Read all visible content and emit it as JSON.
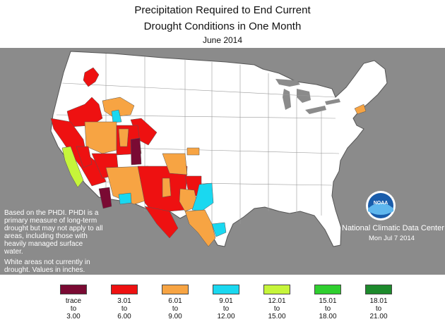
{
  "title": {
    "line1": "Precipitation Required to End Current",
    "line2": "Drought Conditions in One Month",
    "line3": "June 2014"
  },
  "notes": {
    "basis": "Based on the PHDI. PHDI is a primary measure of long-term drought but may not apply to all areas, including those with heavily managed surface water.",
    "white": "White areas not currently in drought. Values in inches."
  },
  "credit": {
    "org": "National Climatic Data Center",
    "date": "Mon Jul 7 2014",
    "logo_text": "NOAA"
  },
  "legend": [
    {
      "from": "trace",
      "to_word": "to",
      "to": "3.00",
      "color": "#7a0a33"
    },
    {
      "from": "3.01",
      "to_word": "to",
      "to": "6.00",
      "color": "#ee1111"
    },
    {
      "from": "6.01",
      "to_word": "to",
      "to": "9.00",
      "color": "#f7a443"
    },
    {
      "from": "9.01",
      "to_word": "to",
      "to": "12.00",
      "color": "#1ad8f0"
    },
    {
      "from": "12.01",
      "to_word": "to",
      "to": "15.00",
      "color": "#c6f53a"
    },
    {
      "from": "15.01",
      "to_word": "to",
      "to": "18.00",
      "color": "#2fcf2f"
    },
    {
      "from": "18.01",
      "to_word": "to",
      "to": "21.00",
      "color": "#1d8a2c"
    }
  ],
  "colors": {
    "background": "#8b8b8b",
    "land": "#ffffff",
    "border": "#555555"
  }
}
